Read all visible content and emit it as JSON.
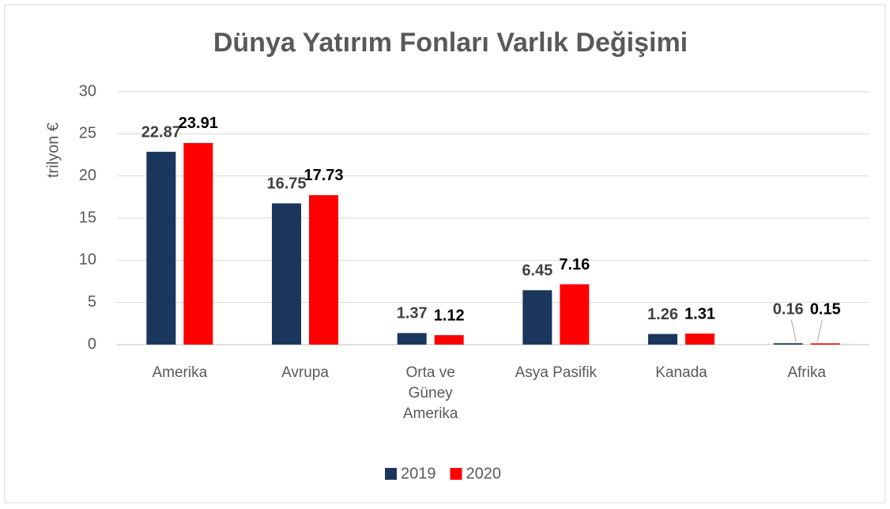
{
  "chart_data": {
    "type": "bar",
    "title": "Dünya Yatırım Fonları Varlık Değişimi",
    "y_label": "trilyon €",
    "categories": [
      "Amerika",
      "Avrupa",
      "Orta ve Güney Amerika",
      "Asya Pasifik",
      "Kanada",
      "Afrika"
    ],
    "series": [
      {
        "name": "2019",
        "color": "#1b365d",
        "label_color": "#404040",
        "values": [
          22.87,
          16.75,
          1.37,
          6.45,
          1.26,
          0.16
        ]
      },
      {
        "name": "2020",
        "color": "#ff0000",
        "label_color": "#000000",
        "values": [
          23.91,
          17.73,
          1.12,
          7.16,
          1.31,
          0.15
        ]
      }
    ],
    "ylim": [
      0,
      30
    ],
    "yticks": [
      0,
      5,
      10,
      15,
      20,
      25,
      30
    ],
    "grid": true,
    "legend": "bottom"
  }
}
